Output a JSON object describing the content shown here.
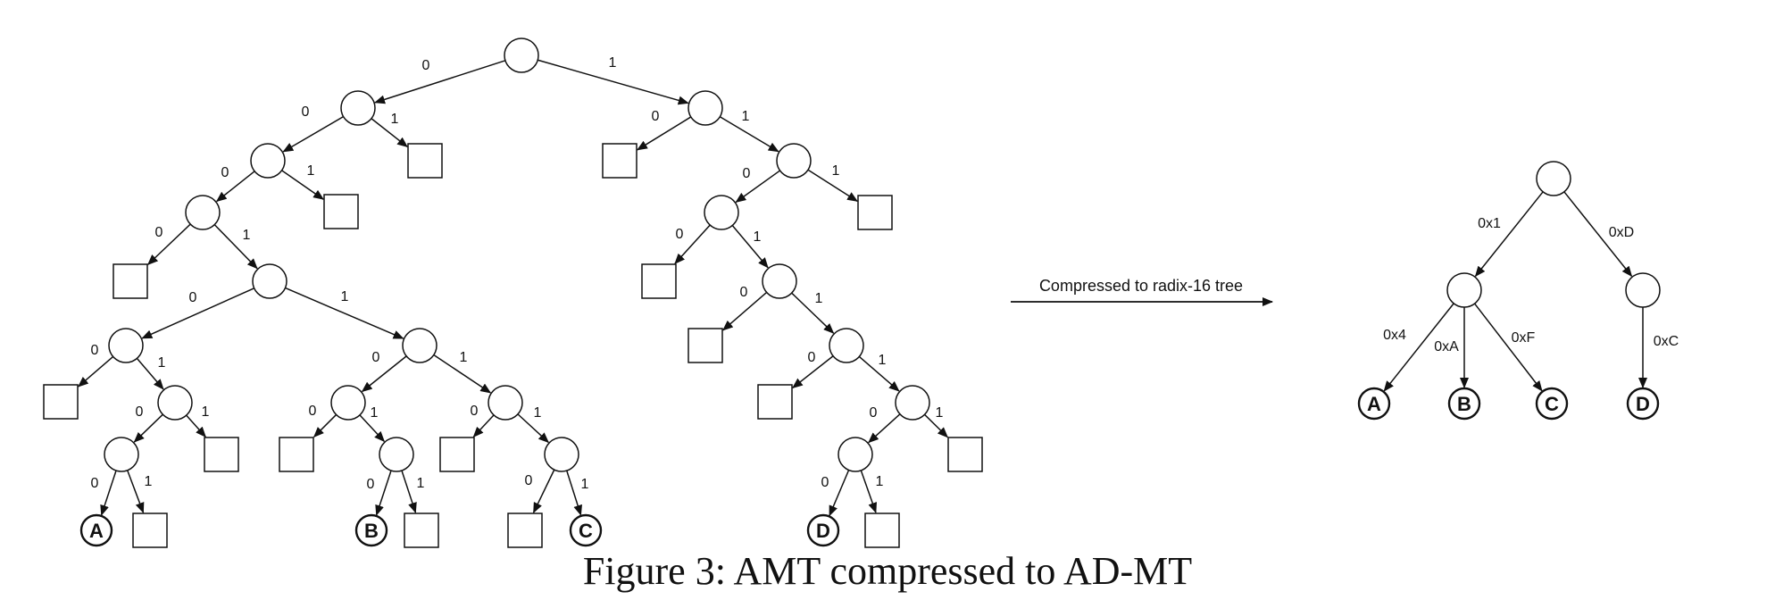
{
  "trees": {
    "binary": {
      "nodes": [
        {
          "id": "r",
          "kind": "circle"
        },
        {
          "id": "n0",
          "kind": "circle"
        },
        {
          "id": "s01",
          "kind": "square"
        },
        {
          "id": "n00",
          "kind": "circle"
        },
        {
          "id": "s001",
          "kind": "square"
        },
        {
          "id": "n000",
          "kind": "circle"
        },
        {
          "id": "s0000",
          "kind": "square"
        },
        {
          "id": "n0001",
          "kind": "circle"
        },
        {
          "id": "nL",
          "kind": "circle"
        },
        {
          "id": "sL0",
          "kind": "square"
        },
        {
          "id": "nL1",
          "kind": "circle"
        },
        {
          "id": "nL10",
          "kind": "circle"
        },
        {
          "id": "sL11",
          "kind": "square"
        },
        {
          "id": "leafA",
          "kind": "leaf",
          "label": "A"
        },
        {
          "id": "sA1",
          "kind": "square"
        },
        {
          "id": "nR",
          "kind": "circle"
        },
        {
          "id": "nR0",
          "kind": "circle"
        },
        {
          "id": "sR00",
          "kind": "square"
        },
        {
          "id": "nR01",
          "kind": "circle"
        },
        {
          "id": "leafB",
          "kind": "leaf",
          "label": "B"
        },
        {
          "id": "sB1",
          "kind": "square"
        },
        {
          "id": "nR1",
          "kind": "circle"
        },
        {
          "id": "sR10",
          "kind": "square"
        },
        {
          "id": "nR11",
          "kind": "circle"
        },
        {
          "id": "sC0",
          "kind": "square"
        },
        {
          "id": "leafC",
          "kind": "leaf",
          "label": "C"
        },
        {
          "id": "n1",
          "kind": "circle"
        },
        {
          "id": "s10",
          "kind": "square"
        },
        {
          "id": "n11",
          "kind": "circle"
        },
        {
          "id": "n110",
          "kind": "circle"
        },
        {
          "id": "s111",
          "kind": "square"
        },
        {
          "id": "s1100",
          "kind": "square"
        },
        {
          "id": "n1101",
          "kind": "circle"
        },
        {
          "id": "s11010",
          "kind": "square"
        },
        {
          "id": "n11011",
          "kind": "circle"
        },
        {
          "id": "s110110",
          "kind": "square"
        },
        {
          "id": "n110111",
          "kind": "circle"
        },
        {
          "id": "n1101110",
          "kind": "circle"
        },
        {
          "id": "s1101111",
          "kind": "square"
        },
        {
          "id": "leafD",
          "kind": "leaf",
          "label": "D"
        },
        {
          "id": "sD1",
          "kind": "square"
        }
      ],
      "edges": [
        {
          "from": "r",
          "to": "n0",
          "label": "0"
        },
        {
          "from": "r",
          "to": "n1",
          "label": "1"
        },
        {
          "from": "n0",
          "to": "n00",
          "label": "0"
        },
        {
          "from": "n0",
          "to": "s01",
          "label": "1"
        },
        {
          "from": "n00",
          "to": "n000",
          "label": "0"
        },
        {
          "from": "n00",
          "to": "s001",
          "label": "1"
        },
        {
          "from": "n000",
          "to": "s0000",
          "label": "0"
        },
        {
          "from": "n000",
          "to": "n0001",
          "label": "1"
        },
        {
          "from": "n0001",
          "to": "nL",
          "label": "0"
        },
        {
          "from": "n0001",
          "to": "nR",
          "label": "1"
        },
        {
          "from": "nL",
          "to": "sL0",
          "label": "0"
        },
        {
          "from": "nL",
          "to": "nL1",
          "label": "1"
        },
        {
          "from": "nL1",
          "to": "nL10",
          "label": "0"
        },
        {
          "from": "nL1",
          "to": "sL11",
          "label": "1"
        },
        {
          "from": "nL10",
          "to": "leafA",
          "label": "0"
        },
        {
          "from": "nL10",
          "to": "sA1",
          "label": "1"
        },
        {
          "from": "nR",
          "to": "nR0",
          "label": "0"
        },
        {
          "from": "nR",
          "to": "nR1",
          "label": "1"
        },
        {
          "from": "nR0",
          "to": "sR00",
          "label": "0"
        },
        {
          "from": "nR0",
          "to": "nR01",
          "label": "1"
        },
        {
          "from": "nR01",
          "to": "leafB",
          "label": "0"
        },
        {
          "from": "nR01",
          "to": "sB1",
          "label": "1"
        },
        {
          "from": "nR1",
          "to": "sR10",
          "label": "0"
        },
        {
          "from": "nR1",
          "to": "nR11",
          "label": "1"
        },
        {
          "from": "nR11",
          "to": "sC0",
          "label": "0"
        },
        {
          "from": "nR11",
          "to": "leafC",
          "label": "1"
        },
        {
          "from": "n1",
          "to": "s10",
          "label": "0"
        },
        {
          "from": "n1",
          "to": "n11",
          "label": "1"
        },
        {
          "from": "n11",
          "to": "n110",
          "label": "0"
        },
        {
          "from": "n11",
          "to": "s111",
          "label": "1"
        },
        {
          "from": "n110",
          "to": "s1100",
          "label": "0"
        },
        {
          "from": "n110",
          "to": "n1101",
          "label": "1"
        },
        {
          "from": "n1101",
          "to": "s11010",
          "label": "0"
        },
        {
          "from": "n1101",
          "to": "n11011",
          "label": "1"
        },
        {
          "from": "n11011",
          "to": "s110110",
          "label": "0"
        },
        {
          "from": "n11011",
          "to": "n110111",
          "label": "1"
        },
        {
          "from": "n110111",
          "to": "n1101110",
          "label": "0"
        },
        {
          "from": "n110111",
          "to": "s1101111",
          "label": "1"
        },
        {
          "from": "n1101110",
          "to": "leafD",
          "label": "0"
        },
        {
          "from": "n1101110",
          "to": "sD1",
          "label": "1"
        }
      ]
    },
    "radix": {
      "nodes": [
        {
          "id": "x",
          "kind": "circle"
        },
        {
          "id": "x1",
          "kind": "circle"
        },
        {
          "id": "xD",
          "kind": "circle"
        },
        {
          "id": "xA_leaf",
          "kind": "leaf",
          "label": "A"
        },
        {
          "id": "xB_leaf",
          "kind": "leaf",
          "label": "B"
        },
        {
          "id": "xC_leaf",
          "kind": "leaf",
          "label": "C"
        },
        {
          "id": "xD_leaf",
          "kind": "leaf",
          "label": "D"
        }
      ],
      "edges": [
        {
          "from": "x",
          "to": "x1",
          "label": "0x1"
        },
        {
          "from": "x",
          "to": "xD",
          "label": "0xD"
        },
        {
          "from": "x1",
          "to": "xA_leaf",
          "label": "0x4"
        },
        {
          "from": "x1",
          "to": "xB_leaf",
          "label": "0xA"
        },
        {
          "from": "x1",
          "to": "xC_leaf",
          "label": "0xF"
        },
        {
          "from": "xD",
          "to": "xD_leaf",
          "label": "0xC"
        }
      ]
    }
  },
  "transition_label": "Compressed to radix-16 tree",
  "caption": "Figure 3: AMT compressed to AD-MT"
}
